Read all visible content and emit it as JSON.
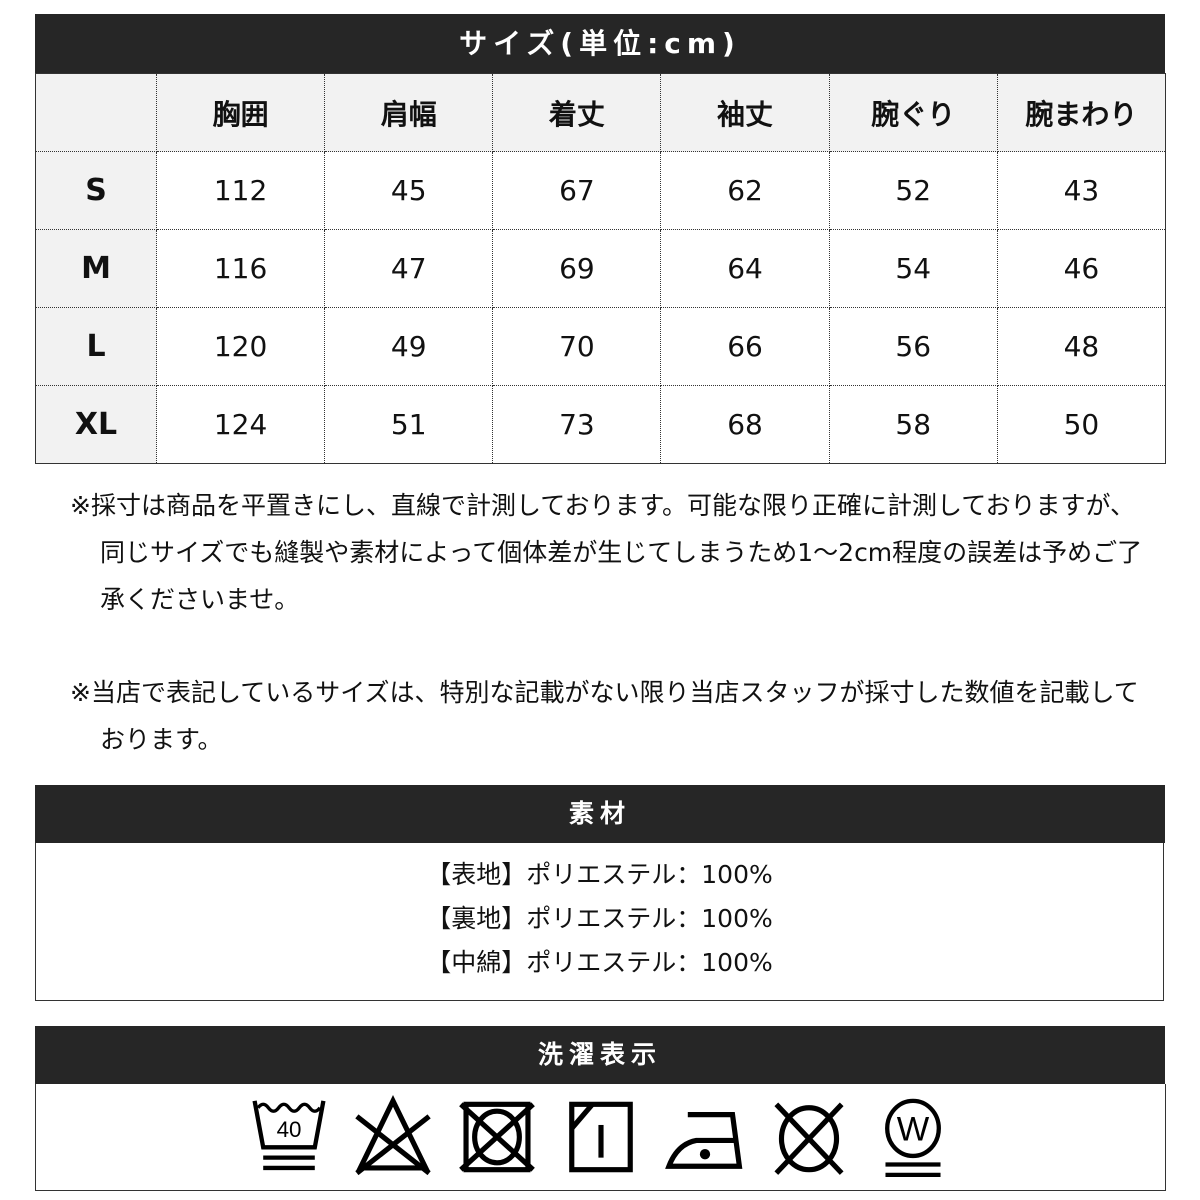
{
  "size_chart": {
    "title": "サイズ(単位:cm)",
    "columns": [
      "胸囲",
      "肩幅",
      "着丈",
      "袖丈",
      "腕ぐり",
      "腕まわり"
    ],
    "rows": [
      {
        "size": "S",
        "values": [
          "112",
          "45",
          "67",
          "62",
          "52",
          "43"
        ]
      },
      {
        "size": "M",
        "values": [
          "116",
          "47",
          "69",
          "64",
          "54",
          "46"
        ]
      },
      {
        "size": "L",
        "values": [
          "120",
          "49",
          "70",
          "66",
          "56",
          "48"
        ]
      },
      {
        "size": "XL",
        "values": [
          "124",
          "51",
          "73",
          "68",
          "58",
          "50"
        ]
      }
    ]
  },
  "notes": [
    "※採寸は商品を平置きにし、直線で計測しております。可能な限り正確に計測しておりますが、同じサイズでも縫製や素材によって個体差が生じてしまうため1〜2cm程度の誤差は予めご了承くださいませ。",
    "※当店で表記しているサイズは、特別な記載がない限り当店スタッフが採寸した数値を記載しております。"
  ],
  "material": {
    "title": "素材",
    "lines": [
      "【表地】ポリエステル：100%",
      "【裏地】ポリエステル：100%",
      "【中綿】ポリエステル：100%"
    ]
  },
  "care": {
    "title": "洗濯表示",
    "icons": [
      "wash-40-very-gentle-icon",
      "no-bleach-icon",
      "no-tumble-dry-icon",
      "drip-dry-shade-icon",
      "iron-low-icon",
      "no-dry-clean-icon",
      "wet-clean-very-gentle-icon"
    ],
    "wash_temp": "40",
    "wet_clean_letter": "W"
  }
}
